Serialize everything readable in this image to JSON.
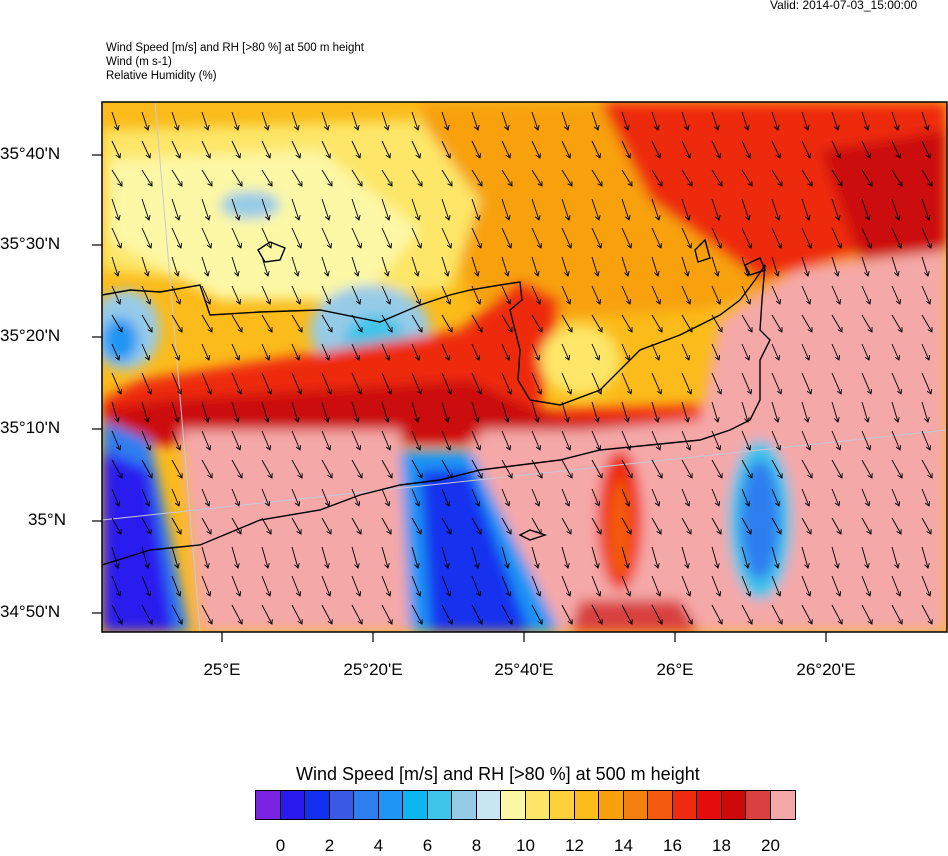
{
  "header": {
    "valid": "Valid: 2014-07-03_15:00:00",
    "title_lines": [
      "Wind Speed [m/s] and RH [>80 %] at 500 m height",
      "Wind   (m s-1)",
      "Relative Humidity   (%)"
    ]
  },
  "map": {
    "lat_labels": [
      "35°40'N",
      "35°30'N",
      "35°20'N",
      "35°10'N",
      "35°N",
      "34°50'N"
    ],
    "lon_labels": [
      "25°E",
      "25°20'E",
      "25°40'E",
      "26°E",
      "26°20'E"
    ],
    "field": "Wind Speed [m/s] and RH [>80 %] at 500 m height",
    "wind_direction": "north-northwest to south-southeast (arrows pointing down-right)"
  },
  "colorbar": {
    "title": "Wind Speed [m/s] and RH [>80 %] at 500 m height",
    "colors": [
      "#7a22e6",
      "#2a1aee",
      "#1230ee",
      "#3a5ae6",
      "#2e7ef0",
      "#1f95f5",
      "#0cb7ef",
      "#3fc4ea",
      "#96cbe8",
      "#c8e6f2",
      "#fdf8a5",
      "#fde667",
      "#fcd13a",
      "#fbbb1a",
      "#f8a10c",
      "#f67f12",
      "#f45a10",
      "#ee2b10",
      "#e40c0c",
      "#cc0a0a",
      "#d94040",
      "#f5a8a8"
    ],
    "ticks": [
      "0",
      "2",
      "4",
      "6",
      "8",
      "10",
      "12",
      "14",
      "16",
      "18",
      "20"
    ]
  }
}
